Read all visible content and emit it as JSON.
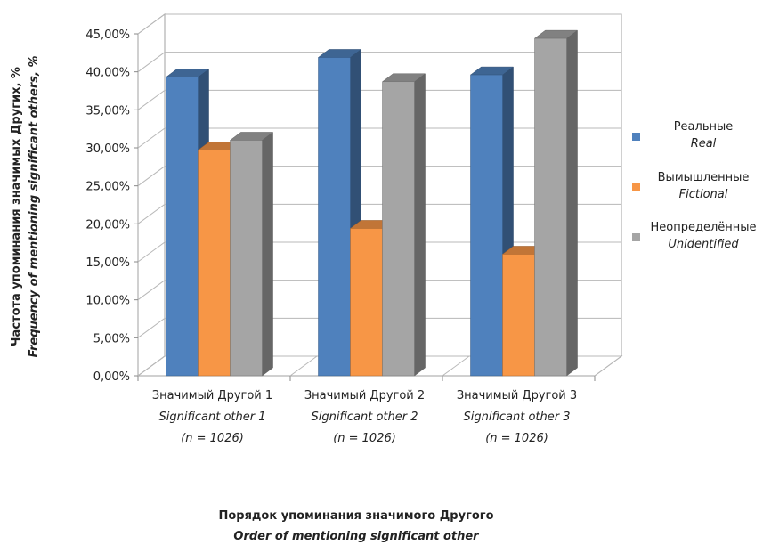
{
  "chart_data": {
    "type": "bar",
    "categories": [
      [
        "Значимый Другой 1",
        "Significant other 1",
        "(n = 1026)"
      ],
      [
        "Значимый Другой 2",
        "Significant other 2",
        "(n = 1026)"
      ],
      [
        "Значимый Другой 3",
        "Significant other 3",
        "(n = 1026)"
      ]
    ],
    "series": [
      {
        "name": "Реальные",
        "name_en": "Real",
        "color": "#4F81BD",
        "values": [
          39.3,
          41.9,
          39.6
        ]
      },
      {
        "name": "Вымышленные",
        "name_en": "Fictional",
        "color": "#F79646",
        "values": [
          29.7,
          19.4,
          16.0
        ]
      },
      {
        "name": "Неопределённые",
        "name_en": "Unidentified",
        "color": "#A5A5A5",
        "values": [
          31.0,
          38.7,
          44.4
        ]
      }
    ],
    "ylim": [
      0,
      45
    ],
    "yticks": [
      "0,00%",
      "5,00%",
      "10,00%",
      "15,00%",
      "20,00%",
      "25,00%",
      "30,00%",
      "35,00%",
      "40,00%",
      "45,00%"
    ],
    "ylabel": "Частота упоминания значимых Других, %",
    "ylabel_en": "Frequency of mentioning significant others, %",
    "xlabel": "Порядок упоминания значимого Другого",
    "xlabel_en": "Order of mentioning significant other",
    "grid": true,
    "legend_position": "right",
    "style": "3d-clustered-column"
  }
}
